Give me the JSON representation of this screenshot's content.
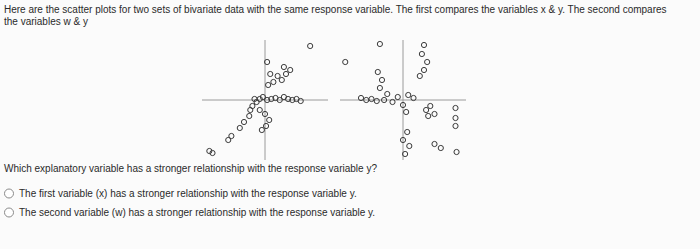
{
  "intro_lines": [
    "Here are the scatter plots for two sets of bivariate data with the same response variable. The first compares the variables x & y. The second compares",
    "the variables w & y"
  ],
  "chart_data": [
    {
      "type": "scatter",
      "marker": "circle",
      "color": "#3a3a3a",
      "tick_labels": false,
      "xlim": [
        -6,
        6
      ],
      "ylim": [
        -6,
        6
      ],
      "x": [
        -5.3,
        -5.0,
        -3.5,
        -3.2,
        -2.4,
        -2.0,
        -1.5,
        -1.2,
        -0.8,
        -0.5,
        -1.0,
        -0.2,
        0.2,
        0.6,
        1.0,
        1.4,
        1.8,
        2.2,
        2.6,
        3.0,
        3.4,
        -0.5,
        0.0,
        0.4,
        0.1,
        -0.3,
        0.3,
        0.8,
        1.2,
        1.6,
        2.0,
        2.4,
        1.8,
        0.5,
        0.2,
        4.3,
        -1.4
      ],
      "values": [
        -5.1,
        -5.3,
        -4.0,
        -3.6,
        -2.8,
        -2.2,
        -1.6,
        -0.6,
        -0.2,
        0.1,
        0.1,
        0.3,
        0.0,
        0.1,
        0.2,
        0.0,
        0.3,
        0.1,
        0.0,
        0.1,
        -0.1,
        -1.0,
        -1.4,
        -2.0,
        -2.6,
        -3.0,
        1.5,
        1.8,
        2.4,
        2.0,
        2.6,
        3.0,
        3.3,
        2.6,
        3.8,
        5.4,
        -1.0
      ]
    },
    {
      "type": "scatter",
      "marker": "circle",
      "color": "#3a3a3a",
      "tick_labels": false,
      "xlim": [
        -6,
        6
      ],
      "ylim": [
        -6,
        6
      ],
      "x": [
        -5.5,
        -2.2,
        2.0,
        1.8,
        2.3,
        2.0,
        1.6,
        -2.4,
        -2.0,
        -2.2,
        -1.5,
        -4.0,
        -3.5,
        -3.0,
        -2.5,
        -1.8,
        -1.0,
        -0.5,
        0.0,
        0.3,
        0.5,
        1.0,
        2.2,
        2.6,
        2.4,
        3.0,
        5.0,
        5.0,
        5.0,
        0.4,
        0.0,
        0.6,
        0.2,
        3.0,
        3.6,
        5.1
      ],
      "values": [
        3.8,
        5.6,
        5.5,
        4.6,
        3.8,
        3.0,
        2.4,
        2.8,
        2.0,
        1.2,
        0.6,
        0.2,
        0.0,
        0.1,
        -0.1,
        0.0,
        -0.2,
        0.3,
        -0.5,
        -1.2,
        0.5,
        0.2,
        -1.0,
        -0.6,
        -1.6,
        -1.4,
        -0.8,
        -1.8,
        -2.6,
        -3.2,
        -4.0,
        -4.6,
        -5.4,
        -4.4,
        -4.8,
        -5.2
      ]
    }
  ],
  "question": "Which explanatory variable has a stronger relationship with the response variable y?",
  "options": [
    "The first variable (x) has a stronger relationship with the response variable y.",
    "The second variable (w) has a stronger relationship with the response variable y."
  ]
}
